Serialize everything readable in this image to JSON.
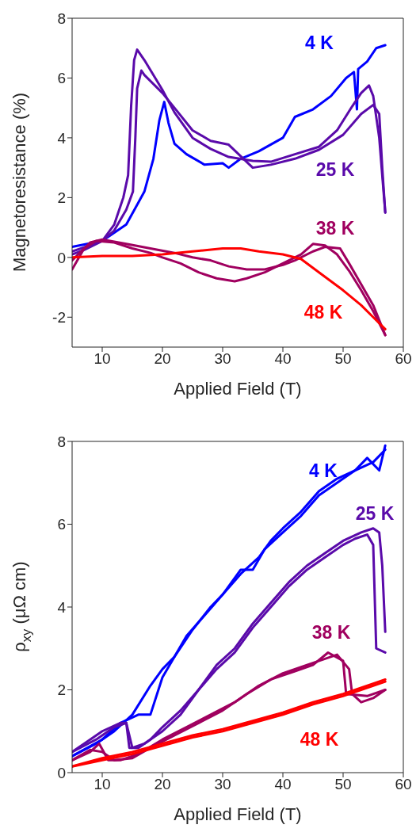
{
  "chart_data": [
    {
      "type": "line",
      "xlabel": "Applied Field (T)",
      "ylabel": "Magnetoresistance (%)",
      "xlim": [
        5,
        60
      ],
      "xticks": [
        10,
        20,
        30,
        40,
        50,
        60
      ],
      "ylim": [
        -3,
        8
      ],
      "yticks": [
        -2,
        0,
        2,
        4,
        6,
        8
      ],
      "marker": "none",
      "line_style": "solid",
      "series": [
        {
          "name": "4 K",
          "color": "#0000ff",
          "x": [
            5,
            10,
            14,
            17,
            18.5,
            19.5,
            20.3,
            21,
            22,
            24,
            27,
            30,
            31,
            33,
            36,
            40,
            42,
            45,
            48,
            50.5,
            51.8,
            52.3,
            52.5,
            54,
            55.5,
            57
          ],
          "values": [
            0.35,
            0.55,
            1.1,
            2.2,
            3.3,
            4.6,
            5.2,
            4.5,
            3.8,
            3.45,
            3.1,
            3.15,
            3.0,
            3.3,
            3.55,
            4.0,
            4.7,
            4.95,
            5.4,
            6.0,
            6.2,
            4.95,
            6.3,
            6.55,
            7.0,
            7.1
          ]
        },
        {
          "name": "25 K",
          "color": "#5a0aaa",
          "x": [
            5,
            10,
            12,
            13.5,
            14.3,
            14.8,
            15.3,
            15.8,
            17,
            20,
            22,
            25,
            28,
            31,
            35,
            38,
            42,
            46,
            49,
            51.5,
            53,
            54.3,
            55,
            56,
            57
          ],
          "values": [
            0.2,
            0.55,
            1.1,
            2.0,
            2.75,
            5.05,
            6.6,
            6.95,
            6.6,
            5.6,
            4.85,
            4.0,
            3.63,
            3.36,
            3.23,
            3.2,
            3.45,
            3.7,
            4.25,
            5.05,
            5.5,
            5.75,
            5.4,
            4.0,
            1.5
          ]
        },
        {
          "color": "#5a0aaa",
          "x": [
            5,
            7,
            10,
            12,
            14,
            15.1,
            15.5,
            15.8,
            16.5,
            17,
            20,
            22,
            25,
            28,
            31,
            35,
            38,
            42,
            46,
            50,
            53,
            55,
            56,
            56.5,
            57
          ],
          "values": [
            0.1,
            0.25,
            0.55,
            0.9,
            1.6,
            2.2,
            4.0,
            5.65,
            6.25,
            6.1,
            5.5,
            5.0,
            4.25,
            3.9,
            3.77,
            3.0,
            3.1,
            3.3,
            3.6,
            4.1,
            4.8,
            5.1,
            4.8,
            3.0,
            1.5
          ]
        },
        {
          "name": "38 K",
          "color": "#a0005f",
          "x": [
            5,
            7,
            9,
            12,
            15,
            18,
            20,
            23,
            26,
            29,
            32,
            34,
            37,
            40,
            43,
            45,
            47,
            49,
            51,
            53,
            55,
            57
          ],
          "values": [
            -0.4,
            0.3,
            0.55,
            0.5,
            0.3,
            0.15,
            0.0,
            -0.2,
            -0.5,
            -0.7,
            -0.8,
            -0.7,
            -0.5,
            -0.2,
            0.1,
            0.45,
            0.4,
            0.1,
            -0.45,
            -1.1,
            -1.8,
            -2.6
          ]
        },
        {
          "color": "#a0005f",
          "x": [
            5,
            6,
            8,
            10,
            14,
            18,
            22,
            25,
            28,
            31,
            34,
            37,
            40,
            42,
            45,
            47,
            49.5,
            51,
            53,
            55,
            57
          ],
          "values": [
            -0.1,
            0.1,
            0.5,
            0.6,
            0.45,
            0.3,
            0.15,
            0.0,
            -0.1,
            -0.3,
            -0.4,
            -0.4,
            -0.25,
            -0.1,
            0.2,
            0.35,
            0.3,
            -0.2,
            -0.9,
            -1.6,
            -2.6
          ]
        },
        {
          "name": "48 K",
          "color": "#ff0000",
          "x": [
            5,
            10,
            15,
            20,
            25,
            30,
            33,
            36,
            40,
            43,
            46,
            50,
            53,
            55,
            57
          ],
          "values": [
            0.0,
            0.05,
            0.05,
            0.1,
            0.2,
            0.3,
            0.3,
            0.2,
            0.1,
            -0.05,
            -0.5,
            -1.1,
            -1.6,
            -2.0,
            -2.4
          ]
        }
      ]
    },
    {
      "type": "line",
      "xlabel": "Applied Field (T)",
      "ylabel": "ρ$_{xy}$ (μΩ cm)",
      "xlim": [
        5,
        60
      ],
      "xticks": [
        10,
        20,
        30,
        40,
        50,
        60
      ],
      "ylim": [
        0,
        8
      ],
      "yticks": [
        0,
        2,
        4,
        6,
        8
      ],
      "marker": "none",
      "line_style": "solid",
      "series": [
        {
          "name": "4 K",
          "color": "#0000ff",
          "x": [
            5,
            10,
            13,
            16,
            18,
            20,
            22,
            25,
            28,
            30,
            33,
            36,
            38,
            40,
            43,
            46,
            49,
            52,
            54,
            56,
            57
          ],
          "values": [
            0.4,
            0.8,
            1.2,
            1.4,
            1.4,
            2.3,
            2.8,
            3.45,
            4.0,
            4.3,
            4.8,
            5.2,
            5.6,
            5.9,
            6.3,
            6.8,
            7.1,
            7.3,
            7.6,
            7.3,
            7.9
          ]
        },
        {
          "color": "#0000ff",
          "x": [
            5,
            9,
            12,
            15,
            18,
            20,
            22,
            24,
            27,
            30,
            33,
            35,
            37,
            40,
            43,
            46,
            49,
            52,
            55,
            57
          ],
          "values": [
            0.4,
            0.7,
            1.0,
            1.4,
            2.1,
            2.5,
            2.8,
            3.3,
            3.8,
            4.3,
            4.9,
            4.9,
            5.4,
            5.8,
            6.2,
            6.7,
            7.0,
            7.3,
            7.5,
            7.8
          ]
        },
        {
          "name": "25 K",
          "color": "#5a0aaa",
          "x": [
            5,
            8,
            10,
            13,
            14,
            14.5,
            16,
            18,
            20,
            23,
            26,
            29,
            32,
            35,
            38,
            41,
            44,
            47,
            50,
            52,
            54,
            55,
            55.5,
            57
          ],
          "values": [
            0.5,
            0.8,
            1.0,
            1.2,
            1.2,
            0.6,
            0.6,
            0.8,
            1.1,
            1.5,
            2.0,
            2.5,
            2.9,
            3.5,
            4.0,
            4.5,
            4.9,
            5.2,
            5.5,
            5.65,
            5.75,
            5.5,
            3.0,
            2.9
          ]
        },
        {
          "color": "#5a0aaa",
          "x": [
            5,
            9,
            12,
            14,
            15,
            17,
            20,
            23,
            26,
            29,
            32,
            35,
            38,
            41,
            44,
            47,
            50,
            53,
            55,
            56,
            56.5,
            57
          ],
          "values": [
            0.5,
            0.8,
            1.1,
            1.2,
            0.6,
            0.7,
            1.0,
            1.4,
            2.0,
            2.6,
            3.0,
            3.6,
            4.1,
            4.6,
            5.0,
            5.3,
            5.6,
            5.8,
            5.9,
            5.8,
            5.0,
            3.4
          ]
        },
        {
          "name": "38 K",
          "color": "#a0005f",
          "x": [
            5,
            8,
            9.5,
            11,
            13,
            16,
            20,
            24,
            28,
            32,
            36,
            40,
            44,
            47,
            49,
            51,
            51.5,
            53,
            55,
            57
          ],
          "values": [
            0.3,
            0.5,
            0.7,
            0.3,
            0.3,
            0.45,
            0.8,
            1.1,
            1.4,
            1.7,
            2.1,
            2.4,
            2.6,
            2.75,
            2.85,
            2.5,
            1.9,
            1.7,
            1.8,
            2.0
          ]
        },
        {
          "color": "#a0005f",
          "x": [
            5,
            8,
            10,
            12,
            15,
            18,
            22,
            26,
            30,
            34,
            38,
            42,
            45,
            47.5,
            50,
            50.5,
            54,
            57
          ],
          "values": [
            0.3,
            0.55,
            0.5,
            0.3,
            0.35,
            0.6,
            0.9,
            1.2,
            1.5,
            1.9,
            2.25,
            2.45,
            2.6,
            2.9,
            2.7,
            1.9,
            1.85,
            2.0
          ]
        },
        {
          "name": "48 K",
          "color": "#ff0000",
          "x": [
            5,
            10,
            15,
            20,
            25,
            30,
            35,
            40,
            45,
            50,
            55,
            57
          ],
          "values": [
            0.15,
            0.35,
            0.5,
            0.7,
            0.9,
            1.05,
            1.25,
            1.45,
            1.7,
            1.9,
            2.15,
            2.25
          ]
        },
        {
          "color": "#ff0000",
          "x": [
            5,
            10,
            15,
            20,
            25,
            30,
            35,
            40,
            45,
            50,
            55,
            57
          ],
          "values": [
            0.15,
            0.3,
            0.45,
            0.65,
            0.85,
            1.0,
            1.2,
            1.4,
            1.65,
            1.85,
            2.1,
            2.2
          ]
        }
      ]
    }
  ]
}
